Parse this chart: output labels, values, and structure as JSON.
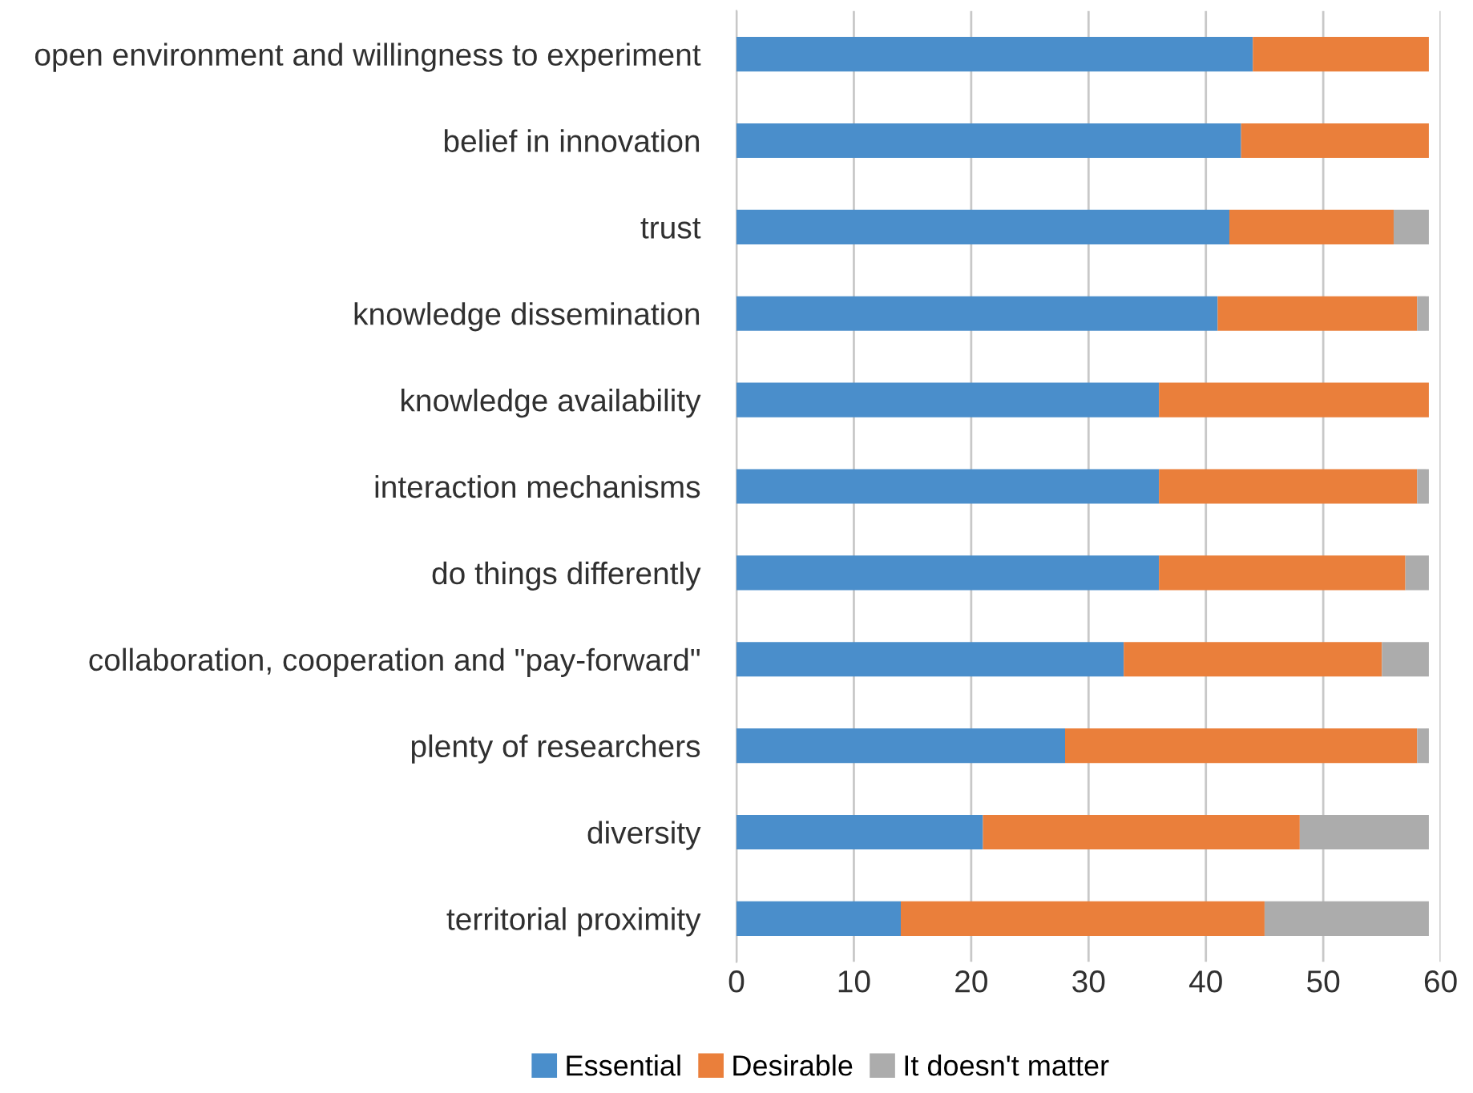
{
  "chart_data": {
    "type": "bar",
    "orientation": "horizontal",
    "stacked": true,
    "categories": [
      "open environment and willingness to experiment",
      "belief in innovation",
      "trust",
      "knowledge dissemination",
      "knowledge availability",
      "interaction mechanisms",
      "do things differently",
      "collaboration, cooperation and \"pay-forward\"",
      "plenty of researchers",
      "diversity",
      "territorial proximity"
    ],
    "series": [
      {
        "name": "Essential",
        "color": "#4a8ecb",
        "values": [
          44,
          43,
          42,
          41,
          36,
          36,
          36,
          33,
          28,
          21,
          14
        ]
      },
      {
        "name": "Desirable",
        "color": "#ea7f3b",
        "values": [
          15,
          16,
          14,
          17,
          23,
          22,
          21,
          22,
          30,
          27,
          31
        ]
      },
      {
        "name": "It doesn't matter",
        "color": "#acacac",
        "values": [
          0,
          0,
          3,
          1,
          0,
          1,
          2,
          4,
          1,
          11,
          14
        ]
      }
    ],
    "xlim": [
      0,
      60
    ],
    "xticks": [
      0,
      10,
      20,
      30,
      40,
      50,
      60
    ],
    "grid": "x",
    "legend": "bottom"
  }
}
